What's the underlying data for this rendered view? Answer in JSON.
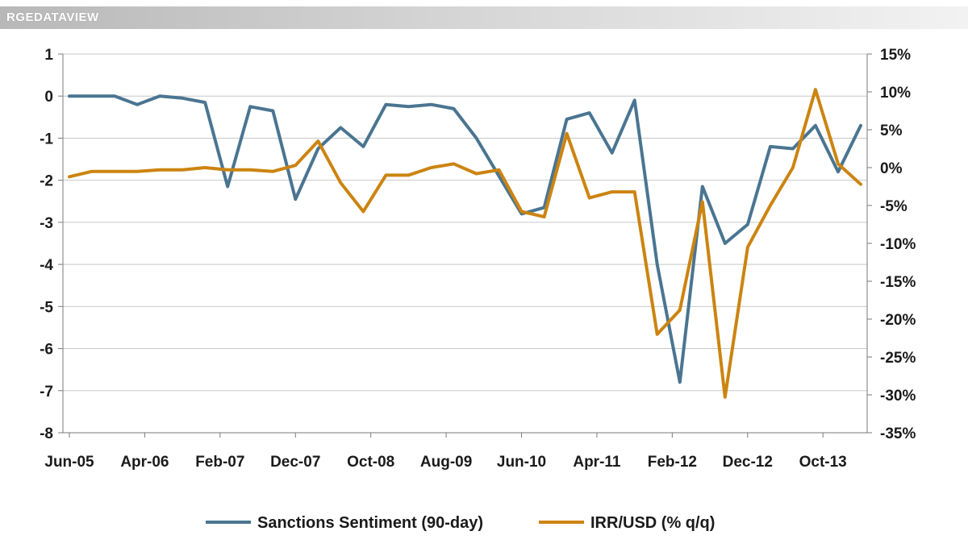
{
  "brand": {
    "label": "RGEDATAVIEW"
  },
  "chart_data": {
    "type": "line",
    "title": "",
    "x_tick_labels": [
      "Jun-05",
      "Apr-06",
      "Feb-07",
      "Dec-07",
      "Oct-08",
      "Aug-09",
      "Jun-10",
      "Apr-11",
      "Feb-12",
      "Dec-12",
      "Oct-13"
    ],
    "x_tick_start_index": 0,
    "x_tick_step": 3.333,
    "y_left": {
      "min": -8,
      "max": 1,
      "step": 1,
      "tick_labels": [
        "1",
        "0",
        "-1",
        "-2",
        "-3",
        "-4",
        "-5",
        "-6",
        "-7",
        "-8"
      ]
    },
    "y_right": {
      "min": -35,
      "max": 15,
      "step": 5,
      "tick_labels": [
        "15%",
        "10%",
        "5%",
        "0%",
        "-5%",
        "-10%",
        "-15%",
        "-20%",
        "-25%",
        "-30%",
        "-35%"
      ]
    },
    "grid": true,
    "legend_position": "bottom",
    "series": [
      {
        "name": "Sanctions Sentiment (90-day)",
        "axis": "left",
        "color": "#4a7591",
        "values": [
          0,
          0,
          0,
          -0.2,
          0,
          -0.05,
          -0.15,
          -2.15,
          -0.25,
          -0.35,
          -2.45,
          -1.25,
          -0.75,
          -1.2,
          -0.2,
          -0.25,
          -0.2,
          -0.3,
          -1.0,
          -1.9,
          -2.8,
          -2.65,
          -0.55,
          -0.4,
          -1.35,
          -0.1,
          -4.0,
          -6.8,
          -2.15,
          -3.5,
          -3.05,
          -1.2,
          -1.25,
          -0.7,
          -1.8,
          -0.7
        ]
      },
      {
        "name": "IRR/USD (% q/q)",
        "axis": "right",
        "color": "#cc8410",
        "values": [
          -1.2,
          -0.5,
          -0.5,
          -0.5,
          -0.3,
          -0.3,
          0,
          -0.3,
          -0.3,
          -0.5,
          0.3,
          3.5,
          -2.0,
          -5.8,
          -1.0,
          -1.0,
          0,
          0.5,
          -0.8,
          -0.3,
          -5.8,
          -6.5,
          4.5,
          -4.0,
          -3.2,
          -3.2,
          -22.0,
          -18.8,
          -4.5,
          -30.3,
          -10.5,
          -5.0,
          0,
          10.3,
          0.5,
          -2.2
        ]
      }
    ]
  }
}
